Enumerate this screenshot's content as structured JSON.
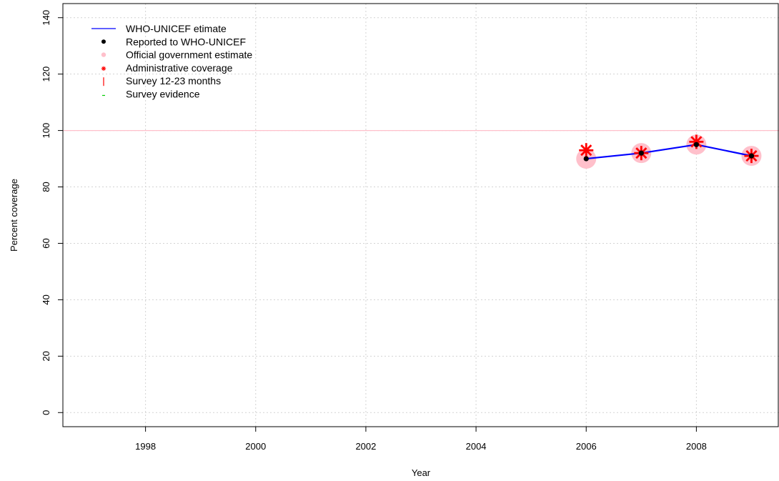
{
  "chart_data": {
    "type": "line",
    "title": "",
    "xlabel": "Year",
    "ylabel": "Percent coverage",
    "xlim": [
      1996.5,
      2009.5
    ],
    "ylim": [
      -5,
      145
    ],
    "x_ticks": [
      1998,
      2000,
      2002,
      2004,
      2006,
      2008
    ],
    "y_ticks": [
      0,
      20,
      40,
      60,
      80,
      100,
      120,
      140
    ],
    "grid": true,
    "reference_line": {
      "y": 100,
      "color": "#ffc0cb"
    },
    "legend": {
      "position": "top-left",
      "entries": [
        {
          "label": "WHO-UNICEF etimate",
          "symbol": "line",
          "color": "#0000ff"
        },
        {
          "label": "Reported to WHO-UNICEF",
          "symbol": "dot",
          "color": "#000000"
        },
        {
          "label": "Official government estimate",
          "symbol": "circle",
          "color": "#ffc0cb"
        },
        {
          "label": "Administrative coverage",
          "symbol": "asterisk",
          "color": "#ff0000"
        },
        {
          "label": "Survey 12-23 months",
          "symbol": "vbar",
          "color": "#ff0000"
        },
        {
          "label": "Survey evidence",
          "symbol": "dash",
          "color": "#00cc00"
        }
      ]
    },
    "series": [
      {
        "name": "WHO-UNICEF etimate",
        "kind": "line",
        "color": "#0000ff",
        "x": [
          2006,
          2007,
          2008,
          2009
        ],
        "y": [
          90,
          92,
          95,
          91
        ]
      },
      {
        "name": "Official government estimate",
        "kind": "circle",
        "color": "#ffc0cb",
        "x": [
          2006,
          2007,
          2008,
          2009
        ],
        "y": [
          90,
          92,
          95,
          91
        ]
      },
      {
        "name": "Administrative coverage",
        "kind": "asterisk",
        "color": "#ff0000",
        "x": [
          2006,
          2007,
          2008,
          2009
        ],
        "y": [
          93,
          92,
          96,
          91
        ]
      },
      {
        "name": "Reported to WHO-UNICEF",
        "kind": "dot",
        "color": "#000000",
        "x": [
          2006,
          2007,
          2008,
          2009
        ],
        "y": [
          90,
          92,
          95,
          91
        ]
      }
    ]
  }
}
